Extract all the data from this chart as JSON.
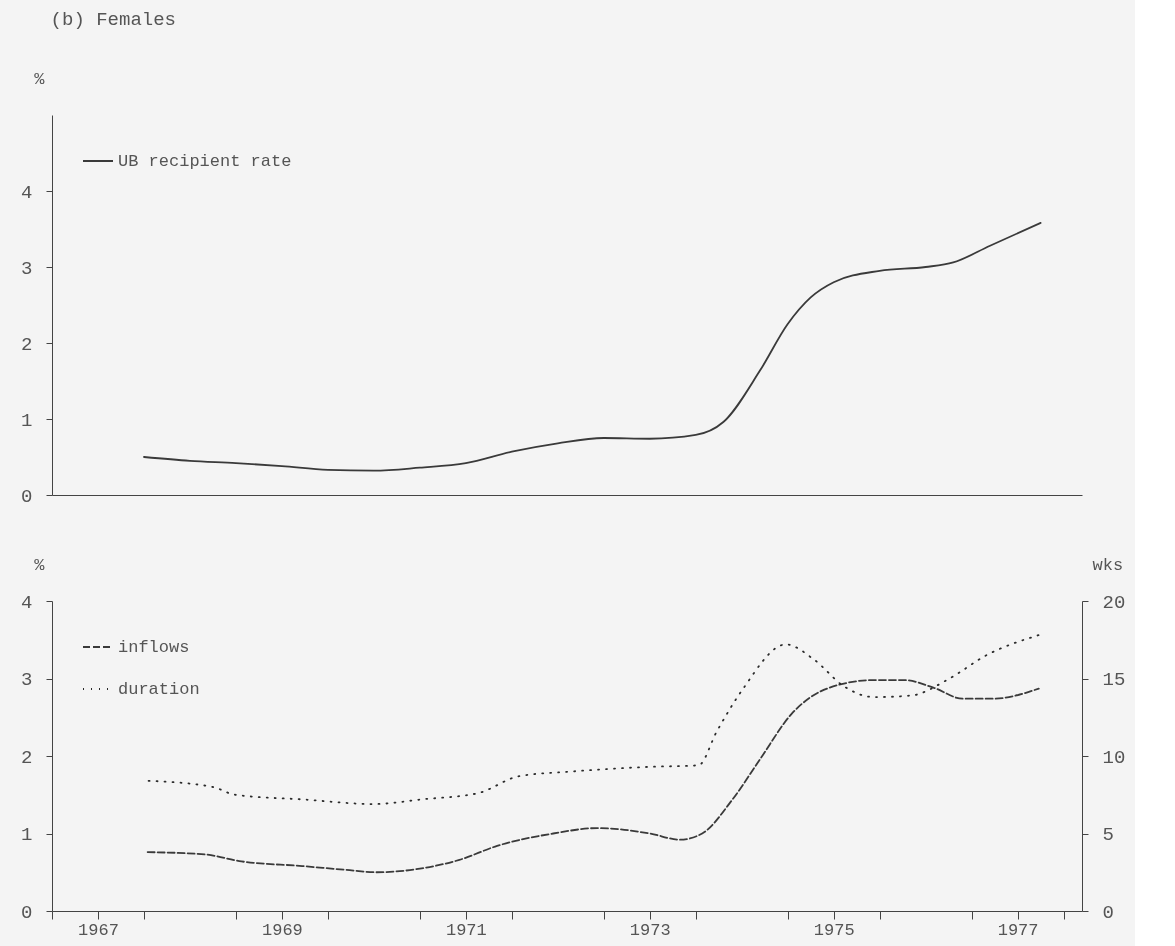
{
  "chart_data": [
    {
      "type": "line",
      "title": "(b) Females",
      "ylabel": "%",
      "xlim": [
        1967,
        1978.2
      ],
      "ylim": [
        0,
        5
      ],
      "yticks": [
        0,
        1,
        2,
        3,
        4
      ],
      "tick_labels": "y",
      "grid": false,
      "legend": "top left",
      "series": [
        {
          "name": "UB recipient rate",
          "color": "#3a3a3a",
          "line_style": "solid",
          "x": [
            1968.0,
            1968.5,
            1969.0,
            1969.5,
            1970.0,
            1970.5,
            1971.0,
            1971.5,
            1972.0,
            1972.5,
            1973.0,
            1973.5,
            1974.0,
            1974.3,
            1974.7,
            1975.0,
            1975.25,
            1975.5,
            1976.0,
            1976.5,
            1976.8,
            1977.2,
            1977.75
          ],
          "values": [
            0.5,
            0.45,
            0.42,
            0.38,
            0.33,
            0.32,
            0.36,
            0.42,
            0.57,
            0.68,
            0.75,
            0.74,
            0.79,
            0.96,
            1.64,
            2.25,
            2.6,
            2.8,
            2.95,
            3.0,
            3.06,
            3.28,
            3.58
          ]
        }
      ]
    },
    {
      "type": "line",
      "ylabel": "%",
      "y2label": "wks",
      "xlim": [
        1967,
        1978.2
      ],
      "ylim": [
        0,
        4
      ],
      "yticks": [
        0,
        1,
        2,
        3,
        4
      ],
      "y2lim": [
        0,
        20
      ],
      "y2ticks": [
        0,
        5,
        10,
        15,
        20
      ],
      "xticks": [
        {
          "value": 1967,
          "label": null
        },
        {
          "value": 1967.5,
          "label": "1967"
        },
        {
          "value": 1968,
          "label": null
        },
        {
          "value": 1969,
          "label": null
        },
        {
          "value": 1969.5,
          "label": "1969"
        },
        {
          "value": 1970,
          "label": null
        },
        {
          "value": 1971,
          "label": null
        },
        {
          "value": 1971.5,
          "label": "1971"
        },
        {
          "value": 1972,
          "label": null
        },
        {
          "value": 1973,
          "label": null
        },
        {
          "value": 1973.5,
          "label": "1973"
        },
        {
          "value": 1974,
          "label": null
        },
        {
          "value": 1975,
          "label": null
        },
        {
          "value": 1975.5,
          "label": "1975"
        },
        {
          "value": 1976,
          "label": null
        },
        {
          "value": 1977,
          "label": null
        },
        {
          "value": 1977.5,
          "label": "1977"
        },
        {
          "value": 1978,
          "label": null
        }
      ],
      "grid": false,
      "legend": "top left",
      "series": [
        {
          "name": "inflows",
          "color": "#3a3a3a",
          "line_style": "dashed",
          "x": [
            1968.04,
            1968.66,
            1969.06,
            1969.72,
            1970.2,
            1970.53,
            1971.02,
            1971.43,
            1971.84,
            1972.45,
            1972.93,
            1973.5,
            1973.83,
            1974.07,
            1974.4,
            1974.7,
            1975.04,
            1975.45,
            1975.94,
            1976.26,
            1976.59,
            1976.9,
            1977.24,
            1977.73
          ],
          "values": [
            0.76,
            0.73,
            0.64,
            0.58,
            0.53,
            0.5,
            0.55,
            0.66,
            0.84,
            1.0,
            1.07,
            1.0,
            0.92,
            1.0,
            1.44,
            1.96,
            2.54,
            2.88,
            2.98,
            2.98,
            2.88,
            2.74,
            2.74,
            2.87
          ]
        },
        {
          "name": "duration",
          "color": "#2a2a2a",
          "line_style": "dotted",
          "axis": "y2",
          "x": [
            1968.05,
            1968.75,
            1968.99,
            1969.72,
            1970.5,
            1971.02,
            1971.63,
            1972.08,
            1972.65,
            1973.5,
            1974.03,
            1974.23,
            1974.51,
            1974.98,
            1975.29,
            1975.61,
            1975.94,
            1976.34,
            1976.76,
            1977.16,
            1977.73
          ],
          "values": [
            8.4,
            8.0,
            7.5,
            7.2,
            6.9,
            7.2,
            7.6,
            8.7,
            9.0,
            9.3,
            9.4,
            11.6,
            14.3,
            17.2,
            16.2,
            14.5,
            13.8,
            13.9,
            15.0,
            16.5,
            17.8
          ]
        }
      ]
    }
  ]
}
